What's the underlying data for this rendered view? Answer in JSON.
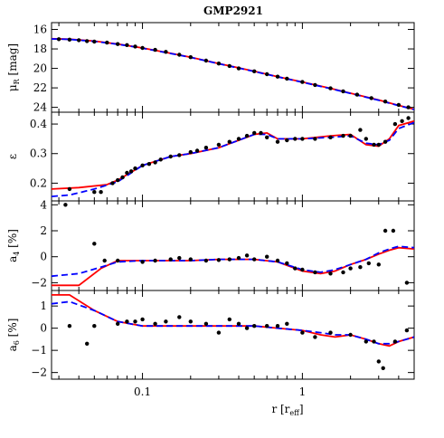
{
  "title": "GMP2921",
  "colors": {
    "model_solid": "#ff0000",
    "model_dashed": "#0000ff",
    "points": "#000000",
    "frame": "#000000"
  },
  "xaxis": {
    "label": "r [r",
    "label_sub": "eff",
    "label_end": "]",
    "scale": "log",
    "range": [
      0.027,
      5.0
    ],
    "tick_labels": [
      "0.1",
      "1"
    ]
  },
  "chart_data": [
    {
      "type": "scatter",
      "panel": "surface-brightness",
      "ylabel": "μ",
      "ylabel_sub": "R",
      "ylabel_unit": " [mag]",
      "ylim": [
        24.5,
        15.3
      ],
      "yticks": [
        "16",
        "18",
        "20",
        "22",
        "24"
      ],
      "grid": false,
      "points": [
        [
          0.03,
          17.0
        ],
        [
          0.035,
          17.05
        ],
        [
          0.04,
          17.1
        ],
        [
          0.045,
          17.2
        ],
        [
          0.05,
          17.25
        ],
        [
          0.06,
          17.35
        ],
        [
          0.07,
          17.5
        ],
        [
          0.08,
          17.6
        ],
        [
          0.09,
          17.75
        ],
        [
          0.1,
          17.9
        ],
        [
          0.12,
          18.1
        ],
        [
          0.14,
          18.3
        ],
        [
          0.17,
          18.6
        ],
        [
          0.2,
          18.85
        ],
        [
          0.25,
          19.2
        ],
        [
          0.3,
          19.5
        ],
        [
          0.35,
          19.75
        ],
        [
          0.4,
          20.0
        ],
        [
          0.5,
          20.3
        ],
        [
          0.6,
          20.6
        ],
        [
          0.7,
          20.85
        ],
        [
          0.8,
          21.05
        ],
        [
          1.0,
          21.4
        ],
        [
          1.2,
          21.7
        ],
        [
          1.5,
          22.05
        ],
        [
          1.8,
          22.35
        ],
        [
          2.2,
          22.7
        ],
        [
          2.7,
          23.05
        ],
        [
          3.3,
          23.4
        ],
        [
          4.0,
          23.75
        ],
        [
          4.6,
          24.0
        ]
      ],
      "series": [
        {
          "style": "solid",
          "x": [
            0.027,
            0.035,
            0.05,
            0.07,
            0.1,
            0.15,
            0.2,
            0.3,
            0.5,
            0.7,
            1.0,
            1.5,
            2.0,
            3.0,
            4.0,
            5.0
          ],
          "y": [
            16.95,
            17.0,
            17.2,
            17.5,
            17.9,
            18.45,
            18.85,
            19.5,
            20.3,
            20.85,
            21.4,
            22.05,
            22.55,
            23.25,
            23.8,
            24.2
          ]
        },
        {
          "style": "dashed",
          "x": [
            0.027,
            0.035,
            0.05,
            0.07,
            0.1,
            0.15,
            0.2,
            0.3,
            0.5,
            0.7,
            1.0,
            1.5,
            2.0,
            3.0,
            4.0,
            5.0
          ],
          "y": [
            16.97,
            17.02,
            17.22,
            17.52,
            17.92,
            18.47,
            18.87,
            19.52,
            20.32,
            20.87,
            21.42,
            22.07,
            22.57,
            23.27,
            23.82,
            24.22
          ]
        }
      ]
    },
    {
      "type": "scatter",
      "panel": "ellipticity",
      "ylabel": "ε",
      "ylim": [
        0.14,
        0.44
      ],
      "yticks": [
        "0.2",
        "0.3",
        "0.4"
      ],
      "grid": false,
      "points": [
        [
          0.035,
          0.18
        ],
        [
          0.05,
          0.17
        ],
        [
          0.055,
          0.17
        ],
        [
          0.065,
          0.2
        ],
        [
          0.07,
          0.21
        ],
        [
          0.075,
          0.22
        ],
        [
          0.08,
          0.235
        ],
        [
          0.085,
          0.24
        ],
        [
          0.09,
          0.25
        ],
        [
          0.1,
          0.26
        ],
        [
          0.11,
          0.265
        ],
        [
          0.12,
          0.27
        ],
        [
          0.13,
          0.28
        ],
        [
          0.15,
          0.29
        ],
        [
          0.17,
          0.295
        ],
        [
          0.2,
          0.305
        ],
        [
          0.22,
          0.31
        ],
        [
          0.25,
          0.32
        ],
        [
          0.3,
          0.33
        ],
        [
          0.35,
          0.34
        ],
        [
          0.4,
          0.35
        ],
        [
          0.45,
          0.36
        ],
        [
          0.5,
          0.37
        ],
        [
          0.55,
          0.37
        ],
        [
          0.6,
          0.355
        ],
        [
          0.7,
          0.34
        ],
        [
          0.8,
          0.345
        ],
        [
          0.9,
          0.35
        ],
        [
          1.0,
          0.35
        ],
        [
          1.2,
          0.35
        ],
        [
          1.5,
          0.355
        ],
        [
          1.8,
          0.36
        ],
        [
          2.0,
          0.36
        ],
        [
          2.3,
          0.38
        ],
        [
          2.5,
          0.35
        ],
        [
          2.8,
          0.33
        ],
        [
          3.0,
          0.33
        ],
        [
          3.3,
          0.34
        ],
        [
          3.8,
          0.4
        ],
        [
          4.2,
          0.41
        ],
        [
          4.6,
          0.42
        ]
      ],
      "series": [
        {
          "style": "solid",
          "x": [
            0.027,
            0.04,
            0.06,
            0.07,
            0.1,
            0.15,
            0.2,
            0.3,
            0.4,
            0.5,
            0.6,
            0.7,
            1.0,
            1.5,
            2.0,
            2.5,
            3.0,
            3.5,
            4.0,
            5.0
          ],
          "y": [
            0.18,
            0.185,
            0.195,
            0.21,
            0.26,
            0.29,
            0.3,
            0.32,
            0.345,
            0.365,
            0.37,
            0.35,
            0.35,
            0.36,
            0.365,
            0.33,
            0.325,
            0.35,
            0.395,
            0.41
          ]
        },
        {
          "style": "dashed",
          "x": [
            0.027,
            0.035,
            0.05,
            0.07,
            0.1,
            0.15,
            0.2,
            0.3,
            0.4,
            0.5,
            0.6,
            0.7,
            1.0,
            1.5,
            2.0,
            2.5,
            3.0,
            3.5,
            4.0,
            5.0
          ],
          "y": [
            0.155,
            0.16,
            0.18,
            0.205,
            0.26,
            0.29,
            0.3,
            0.32,
            0.345,
            0.365,
            0.365,
            0.35,
            0.35,
            0.355,
            0.36,
            0.335,
            0.33,
            0.345,
            0.385,
            0.405
          ]
        }
      ]
    },
    {
      "type": "scatter",
      "panel": "a4",
      "ylabel": "a",
      "ylabel_sub": "4",
      "ylabel_unit": " [%]",
      "ylim": [
        -2.6,
        4.3
      ],
      "yticks": [
        "−2",
        "0",
        "2",
        "4"
      ],
      "grid": false,
      "points": [
        [
          0.033,
          4.0
        ],
        [
          0.05,
          1.0
        ],
        [
          0.058,
          -0.3
        ],
        [
          0.07,
          -0.3
        ],
        [
          0.1,
          -0.4
        ],
        [
          0.12,
          -0.3
        ],
        [
          0.15,
          -0.2
        ],
        [
          0.17,
          -0.1
        ],
        [
          0.2,
          -0.2
        ],
        [
          0.25,
          -0.3
        ],
        [
          0.3,
          -0.25
        ],
        [
          0.35,
          -0.2
        ],
        [
          0.4,
          -0.1
        ],
        [
          0.45,
          0.1
        ],
        [
          0.5,
          -0.2
        ],
        [
          0.6,
          0.0
        ],
        [
          0.7,
          -0.3
        ],
        [
          0.8,
          -0.5
        ],
        [
          0.9,
          -0.9
        ],
        [
          1.0,
          -1.0
        ],
        [
          1.2,
          -1.2
        ],
        [
          1.5,
          -1.3
        ],
        [
          1.8,
          -1.2
        ],
        [
          2.0,
          -0.9
        ],
        [
          2.3,
          -0.8
        ],
        [
          2.6,
          -0.5
        ],
        [
          3.0,
          -0.6
        ],
        [
          3.3,
          2.0
        ],
        [
          3.7,
          2.0
        ],
        [
          4.5,
          -2.0
        ]
      ],
      "series": [
        {
          "style": "solid",
          "x": [
            0.027,
            0.04,
            0.055,
            0.07,
            0.1,
            0.2,
            0.3,
            0.5,
            0.7,
            1.0,
            1.3,
            1.6,
            2.0,
            2.5,
            3.0,
            3.5,
            4.0,
            5.0
          ],
          "y": [
            -2.2,
            -2.2,
            -0.9,
            -0.3,
            -0.3,
            -0.3,
            -0.2,
            -0.2,
            -0.4,
            -1.1,
            -1.3,
            -1.1,
            -0.6,
            -0.2,
            0.2,
            0.5,
            0.7,
            0.6
          ]
        },
        {
          "style": "dashed",
          "x": [
            0.027,
            0.04,
            0.055,
            0.07,
            0.1,
            0.2,
            0.3,
            0.5,
            0.7,
            1.0,
            1.3,
            1.6,
            2.0,
            2.5,
            3.0,
            3.5,
            4.0,
            5.0
          ],
          "y": [
            -1.5,
            -1.3,
            -0.8,
            -0.4,
            -0.3,
            -0.3,
            -0.2,
            -0.2,
            -0.4,
            -1.0,
            -1.2,
            -1.0,
            -0.6,
            -0.2,
            0.3,
            0.6,
            0.8,
            0.7
          ]
        }
      ]
    },
    {
      "type": "scatter",
      "panel": "a6",
      "ylabel": "a",
      "ylabel_sub": "6",
      "ylabel_unit": " [%]",
      "ylim": [
        -2.3,
        1.7
      ],
      "yticks": [
        "−2",
        "−1",
        "0",
        "1"
      ],
      "grid": false,
      "points": [
        [
          0.035,
          0.1
        ],
        [
          0.045,
          -0.7
        ],
        [
          0.05,
          0.1
        ],
        [
          0.07,
          0.2
        ],
        [
          0.08,
          0.3
        ],
        [
          0.09,
          0.3
        ],
        [
          0.1,
          0.4
        ],
        [
          0.12,
          0.2
        ],
        [
          0.14,
          0.3
        ],
        [
          0.17,
          0.5
        ],
        [
          0.2,
          0.3
        ],
        [
          0.25,
          0.2
        ],
        [
          0.3,
          -0.2
        ],
        [
          0.35,
          0.4
        ],
        [
          0.4,
          0.2
        ],
        [
          0.45,
          0.0
        ],
        [
          0.5,
          0.1
        ],
        [
          0.6,
          0.1
        ],
        [
          0.7,
          0.1
        ],
        [
          0.8,
          0.2
        ],
        [
          1.0,
          -0.2
        ],
        [
          1.2,
          -0.4
        ],
        [
          1.5,
          -0.2
        ],
        [
          2.0,
          -0.3
        ],
        [
          2.5,
          -0.6
        ],
        [
          2.8,
          -0.6
        ],
        [
          3.0,
          -1.5
        ],
        [
          3.2,
          -1.8
        ],
        [
          3.8,
          -0.6
        ],
        [
          4.5,
          -0.1
        ]
      ],
      "series": [
        {
          "style": "solid",
          "x": [
            0.027,
            0.035,
            0.05,
            0.07,
            0.1,
            0.2,
            0.3,
            0.5,
            0.7,
            1.0,
            1.3,
            1.6,
            2.0,
            2.5,
            3.0,
            3.5,
            4.0,
            5.0
          ],
          "y": [
            1.5,
            1.5,
            0.8,
            0.3,
            0.1,
            0.1,
            0.1,
            0.1,
            0.0,
            -0.1,
            -0.3,
            -0.4,
            -0.3,
            -0.5,
            -0.7,
            -0.8,
            -0.6,
            -0.4
          ]
        },
        {
          "style": "dashed",
          "x": [
            0.027,
            0.035,
            0.05,
            0.07,
            0.1,
            0.2,
            0.3,
            0.5,
            0.7,
            1.0,
            1.3,
            1.6,
            2.0,
            2.5,
            3.0,
            3.5,
            4.0,
            5.0
          ],
          "y": [
            1.1,
            1.2,
            0.8,
            0.3,
            0.1,
            0.1,
            0.1,
            0.1,
            0.0,
            -0.1,
            -0.2,
            -0.3,
            -0.3,
            -0.5,
            -0.7,
            -0.7,
            -0.6,
            -0.4
          ]
        }
      ]
    }
  ]
}
